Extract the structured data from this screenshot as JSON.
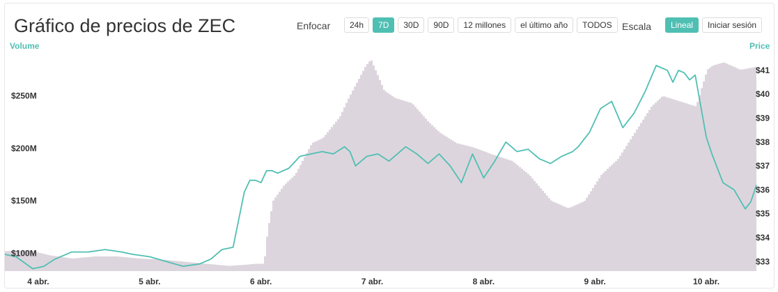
{
  "header": {
    "title": "Gráfico de precios de ZEC",
    "zoom_label": "Enfocar",
    "zoom_options": [
      {
        "label": "24h",
        "active": false
      },
      {
        "label": "7D",
        "active": true
      },
      {
        "label": "30D",
        "active": false
      },
      {
        "label": "90D",
        "active": false
      },
      {
        "label": "12 millones",
        "active": false
      },
      {
        "label": "el último año",
        "active": false
      },
      {
        "label": "TODOS",
        "active": false
      }
    ],
    "scale_label": "Escala",
    "scale_options": [
      {
        "label": "Lineal",
        "active": true
      },
      {
        "label": "Iniciar sesión",
        "active": false
      }
    ]
  },
  "colors": {
    "price_line": "#4fbfb3",
    "volume_area": "#ddd5dd",
    "accent": "#4fbfb3"
  },
  "chart_data": {
    "type": "line",
    "left_axis": {
      "title": "Volume",
      "ticks": [
        {
          "value": 100,
          "label": "$100M"
        },
        {
          "value": 150,
          "label": "$150M"
        },
        {
          "value": 200,
          "label": "$200M"
        },
        {
          "value": 250,
          "label": "$250M"
        }
      ],
      "range": [
        83,
        287
      ]
    },
    "right_axis": {
      "title": "Price",
      "ticks": [
        {
          "value": 33,
          "label": "$33"
        },
        {
          "value": 34,
          "label": "$34"
        },
        {
          "value": 35,
          "label": "$35"
        },
        {
          "value": 36,
          "label": "$36"
        },
        {
          "value": 37,
          "label": "$37"
        },
        {
          "value": 38,
          "label": "$38"
        },
        {
          "value": 39,
          "label": "$39"
        },
        {
          "value": 40,
          "label": "$40"
        },
        {
          "value": 41,
          "label": "$41"
        }
      ],
      "range": [
        32.6,
        41.55
      ]
    },
    "x_axis": {
      "range": [
        3.7,
        10.45
      ],
      "ticks": [
        {
          "value": 4,
          "label": "4 abr."
        },
        {
          "value": 5,
          "label": "5 abr."
        },
        {
          "value": 6,
          "label": "6 abr."
        },
        {
          "value": 7,
          "label": "7 abr."
        },
        {
          "value": 8,
          "label": "8 abr."
        },
        {
          "value": 9,
          "label": "9 abr."
        },
        {
          "value": 10,
          "label": "10 abr."
        }
      ]
    },
    "grid": false,
    "legend": "none",
    "series": [
      {
        "kind": "area",
        "axis": "left",
        "x": [
          3.7,
          3.9,
          4.1,
          4.3,
          4.5,
          4.7,
          4.9,
          5.1,
          5.3,
          5.5,
          5.7,
          5.85,
          5.95,
          6.02,
          6.05,
          6.1,
          6.2,
          6.3,
          6.45,
          6.55,
          6.7,
          6.78,
          6.85,
          6.93,
          6.98,
          7.1,
          7.2,
          7.35,
          7.5,
          7.6,
          7.75,
          7.9,
          8.05,
          8.25,
          8.4,
          8.6,
          8.75,
          8.8,
          8.9,
          9.05,
          9.2,
          9.35,
          9.5,
          9.6,
          9.75,
          9.9,
          10.0,
          10.05,
          10.15,
          10.3,
          10.45
        ],
        "values": [
          102,
          103,
          98,
          95,
          97,
          97,
          95,
          94,
          92,
          90,
          88,
          89,
          90,
          90,
          120,
          150,
          165,
          175,
          205,
          210,
          230,
          248,
          262,
          278,
          285,
          255,
          248,
          243,
          225,
          215,
          205,
          201,
          195,
          188,
          175,
          150,
          143,
          145,
          150,
          175,
          190,
          215,
          240,
          250,
          245,
          240,
          275,
          279,
          282,
          275,
          278
        ],
        "samples": [
          5.95,
          6.05,
          6.1,
          6.2,
          6.98
        ]
      },
      {
        "kind": "line",
        "axis": "right",
        "x": [
          3.7,
          3.8,
          3.95,
          4.05,
          4.15,
          4.3,
          4.45,
          4.6,
          4.75,
          4.85,
          5.0,
          5.15,
          5.3,
          5.45,
          5.55,
          5.65,
          5.75,
          5.85,
          5.9,
          5.95,
          6.0,
          6.05,
          6.1,
          6.15,
          6.25,
          6.35,
          6.45,
          6.55,
          6.65,
          6.75,
          6.8,
          6.85,
          6.9,
          6.95,
          7.05,
          7.15,
          7.3,
          7.4,
          7.5,
          7.6,
          7.7,
          7.8,
          7.9,
          8.0,
          8.1,
          8.2,
          8.3,
          8.4,
          8.5,
          8.6,
          8.7,
          8.8,
          8.85,
          8.95,
          9.05,
          9.15,
          9.25,
          9.35,
          9.45,
          9.55,
          9.65,
          9.7,
          9.75,
          9.8,
          9.85,
          9.9,
          10.0,
          10.05,
          10.15,
          10.25,
          10.35,
          10.4,
          10.45
        ],
        "values": [
          33.3,
          33.2,
          32.7,
          32.8,
          33.1,
          33.4,
          33.4,
          33.5,
          33.4,
          33.3,
          33.2,
          33.0,
          32.8,
          32.9,
          33.1,
          33.5,
          33.6,
          35.9,
          36.4,
          36.4,
          36.3,
          36.8,
          36.8,
          36.7,
          36.9,
          37.4,
          37.5,
          37.6,
          37.5,
          37.8,
          37.6,
          37.0,
          37.2,
          37.4,
          37.5,
          37.2,
          37.8,
          37.5,
          37.1,
          37.5,
          37.0,
          36.3,
          37.5,
          36.5,
          37.2,
          38.0,
          37.6,
          37.7,
          37.3,
          37.1,
          37.4,
          37.6,
          37.8,
          38.4,
          39.4,
          39.7,
          38.6,
          39.2,
          40.1,
          41.2,
          41.0,
          40.5,
          41.0,
          40.9,
          40.6,
          40.8,
          38.2,
          37.5,
          36.3,
          36.0,
          35.2,
          35.5,
          36.2
        ],
        "samples": [
          4.15,
          6.1,
          6.45,
          7.8,
          9.55
        ]
      }
    ]
  }
}
